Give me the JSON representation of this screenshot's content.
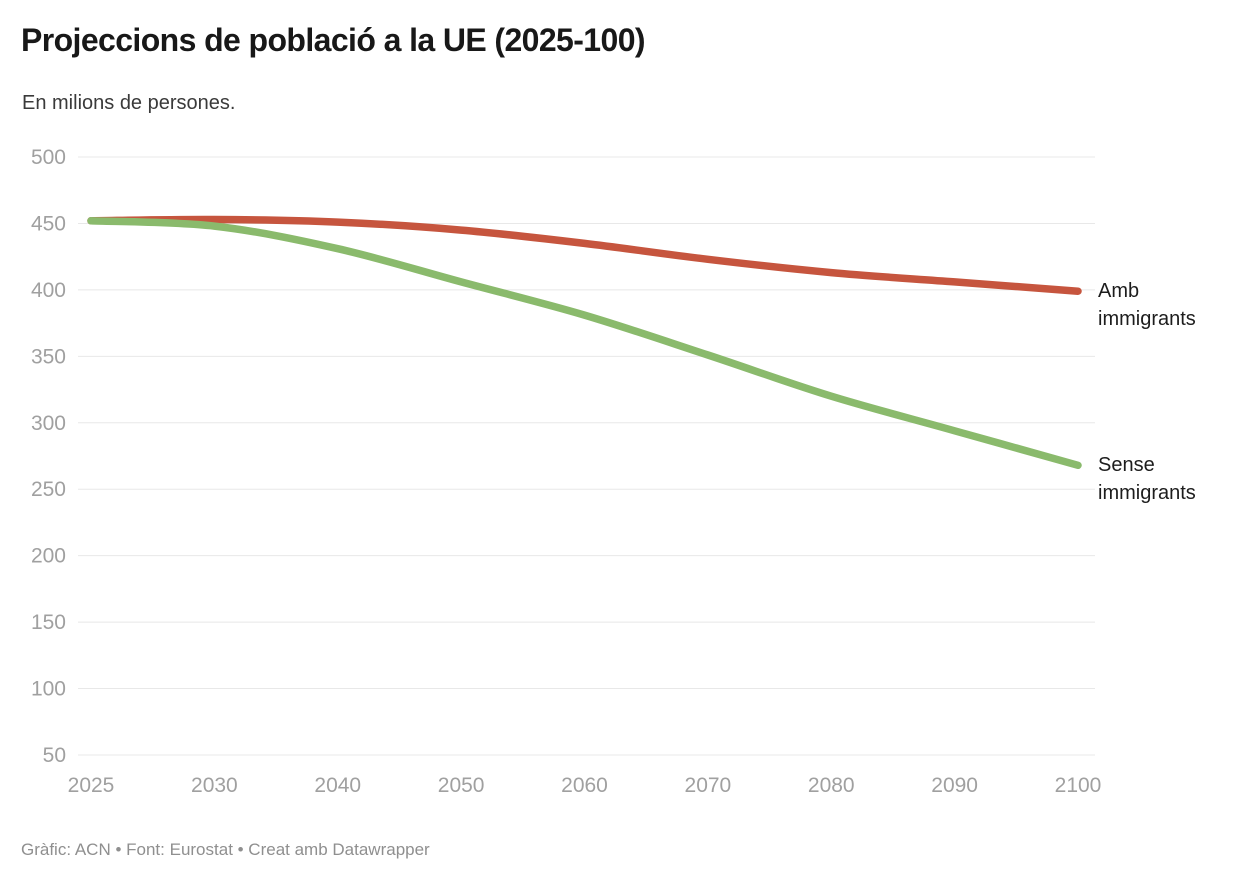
{
  "header": {
    "title": "Projeccions de població a la UE (2025-100)",
    "subtitle": "En milions de persones."
  },
  "footer": {
    "credit": "Gràfic: ACN • Font: Eurostat • Creat amb Datawrapper"
  },
  "chart_data": {
    "type": "line",
    "title": "Projeccions de població a la UE (2025-100)",
    "subtitle": "En milions de persones.",
    "xlabel": "",
    "ylabel": "En milions de persones",
    "x": [
      2025,
      2030,
      2040,
      2050,
      2060,
      2070,
      2080,
      2090,
      2100
    ],
    "x_tick_labels": [
      "2025",
      "2030",
      "2040",
      "2050",
      "2060",
      "2070",
      "2080",
      "2090",
      "2100"
    ],
    "x_spacing": "equal",
    "ylim": [
      50,
      500
    ],
    "yticks": [
      50,
      100,
      150,
      200,
      250,
      300,
      350,
      400,
      450,
      500
    ],
    "grid": true,
    "legend_position": "direct-labels-right",
    "series": [
      {
        "name": "Amb immigrants",
        "color": "#c6553e",
        "values": [
          452,
          453,
          451,
          445,
          435,
          423,
          413,
          406,
          399
        ]
      },
      {
        "name": "Sense immigrants",
        "color": "#8aba6c",
        "values": [
          452,
          448,
          431,
          406,
          381,
          351,
          320,
          294,
          268
        ]
      }
    ]
  }
}
